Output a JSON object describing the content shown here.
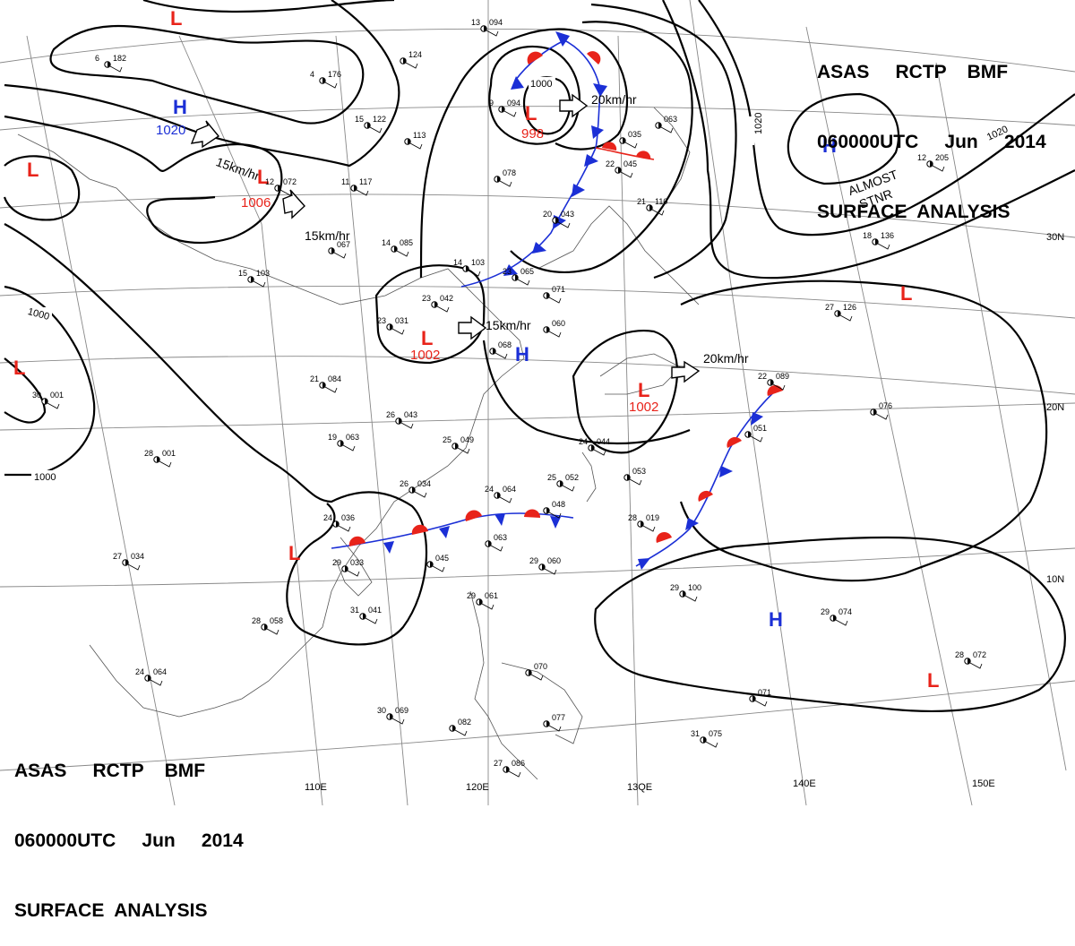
{
  "header": {
    "line1": "ASAS     RCTP    BMF",
    "line2": "060000UTC     Jun     2014",
    "line3": "SURFACE  ANALYSIS"
  },
  "colors": {
    "low": "#e8231a",
    "high": "#1b2fd6",
    "warm_front": "#e8231a",
    "cold_front": "#1b2fd6",
    "isobar": "#000000",
    "grid": "#777777"
  },
  "lon_labels": [
    "110E",
    "120E",
    "13QE",
    "140E",
    "150E"
  ],
  "lat_labels": [
    "30N",
    "20N",
    "10N"
  ],
  "isobar_labels": [
    "1000",
    "1000",
    "1020",
    "1000",
    "1020",
    "1000"
  ],
  "pressure_systems": [
    {
      "type": "L",
      "value": ""
    },
    {
      "type": "H",
      "value": "1020"
    },
    {
      "type": "L",
      "value": "1006"
    },
    {
      "type": "L",
      "value": "998"
    },
    {
      "type": "L",
      "value": ""
    },
    {
      "type": "H",
      "value": ""
    },
    {
      "type": "L",
      "value": ""
    },
    {
      "type": "L",
      "value": "1002"
    },
    {
      "type": "H",
      "value": ""
    },
    {
      "type": "L",
      "value": "1002"
    },
    {
      "type": "L",
      "value": ""
    },
    {
      "type": "L",
      "value": ""
    },
    {
      "type": "H",
      "value": ""
    },
    {
      "type": "L",
      "value": ""
    }
  ],
  "motion_labels": [
    "15km/hr",
    "15km/hr",
    "20km/hr",
    "15km/hr",
    "20km/hr"
  ],
  "annotations": [
    "ALMOST",
    "STNR"
  ],
  "station_plots": [
    {
      "t": "13",
      "p": "094"
    },
    {
      "t": "6",
      "p": "182"
    },
    {
      "t": "",
      "p": "124"
    },
    {
      "t": "4",
      "p": "176"
    },
    {
      "t": "15",
      "p": "122"
    },
    {
      "t": "12",
      "p": "072"
    },
    {
      "t": "11",
      "p": "117"
    },
    {
      "t": "",
      "p": "113"
    },
    {
      "t": "14",
      "p": "085"
    },
    {
      "t": "15",
      "p": "103"
    },
    {
      "t": "",
      "p": "067"
    },
    {
      "t": "14",
      "p": "103"
    },
    {
      "t": "23",
      "p": "065"
    },
    {
      "t": "23",
      "p": "042"
    },
    {
      "t": "23",
      "p": "031"
    },
    {
      "t": "",
      "p": "071"
    },
    {
      "t": "",
      "p": "060"
    },
    {
      "t": "",
      "p": "068"
    },
    {
      "t": "21",
      "p": "084"
    },
    {
      "t": "26",
      "p": "043"
    },
    {
      "t": "19",
      "p": "063"
    },
    {
      "t": "28",
      "p": "001"
    },
    {
      "t": "25",
      "p": "049"
    },
    {
      "t": "24",
      "p": "044"
    },
    {
      "t": "26",
      "p": "034"
    },
    {
      "t": "24",
      "p": "064"
    },
    {
      "t": "25",
      "p": "052"
    },
    {
      "t": "",
      "p": "053"
    },
    {
      "t": "24",
      "p": "036"
    },
    {
      "t": "",
      "p": "048"
    },
    {
      "t": "29",
      "p": "033"
    },
    {
      "t": "",
      "p": "063"
    },
    {
      "t": "",
      "p": "045"
    },
    {
      "t": "29",
      "p": "060"
    },
    {
      "t": "28",
      "p": "019"
    },
    {
      "t": "22",
      "p": "089"
    },
    {
      "t": "",
      "p": "051"
    },
    {
      "t": "",
      "p": "076"
    },
    {
      "t": "27",
      "p": "034"
    },
    {
      "t": "30",
      "p": "001"
    },
    {
      "t": "28",
      "p": "058"
    },
    {
      "t": "31",
      "p": "041"
    },
    {
      "t": "29",
      "p": "061"
    },
    {
      "t": "29",
      "p": "100"
    },
    {
      "t": "29",
      "p": "074"
    },
    {
      "t": "24",
      "p": "064"
    },
    {
      "t": "30",
      "p": "069"
    },
    {
      "t": "",
      "p": "082"
    },
    {
      "t": "",
      "p": "077"
    },
    {
      "t": "",
      "p": "070"
    },
    {
      "t": "28",
      "p": "072"
    },
    {
      "t": "31",
      "p": "075"
    },
    {
      "t": "27",
      "p": "086"
    },
    {
      "t": "",
      "p": "071"
    },
    {
      "t": "12",
      "p": "205"
    },
    {
      "t": "18",
      "p": "136"
    },
    {
      "t": "27",
      "p": "126"
    },
    {
      "t": "",
      "p": "035"
    },
    {
      "t": "",
      "p": "063"
    },
    {
      "t": "20",
      "p": "043"
    },
    {
      "t": "21",
      "p": "110"
    },
    {
      "t": "22",
      "p": "045"
    },
    {
      "t": "",
      "p": "078"
    },
    {
      "t": "9",
      "p": "094"
    }
  ]
}
